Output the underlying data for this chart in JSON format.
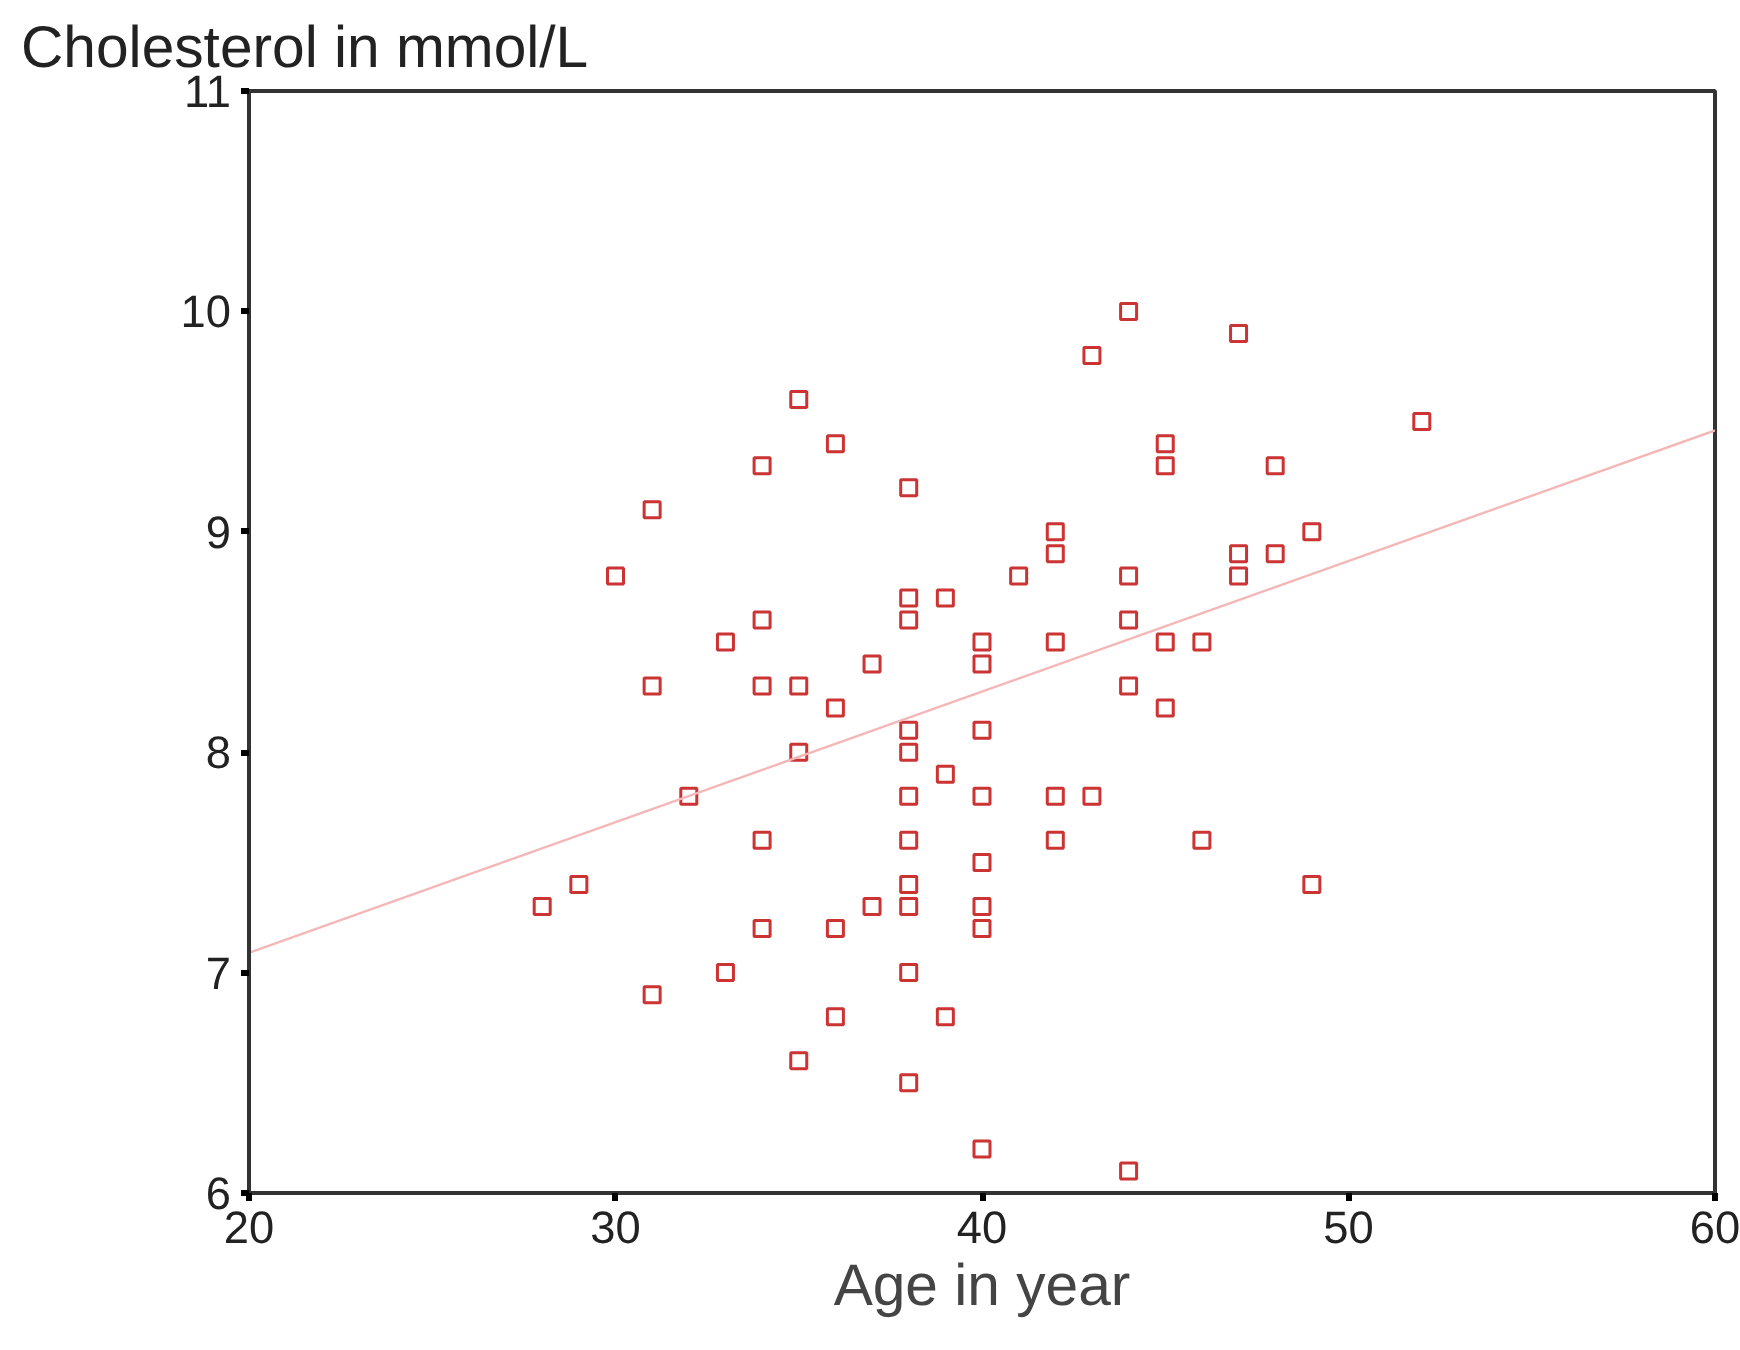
{
  "chart_data": {
    "type": "scatter",
    "xlabel": "Age in year",
    "ylabel": "Cholesterol in mmol/L",
    "xlim": [
      20,
      60
    ],
    "ylim": [
      6,
      11
    ],
    "xticks": [
      20,
      30,
      40,
      50,
      60
    ],
    "yticks": [
      6,
      7,
      8,
      9,
      10,
      11
    ],
    "grid": false,
    "marker": "square",
    "series": [
      {
        "color": "#cc3333",
        "x": [
          35,
          36,
          34,
          38,
          31,
          30,
          38,
          38,
          39,
          34,
          33,
          40,
          37,
          40,
          31,
          34,
          35,
          36,
          38,
          40,
          35,
          38,
          39,
          32,
          38,
          40,
          34,
          38,
          40,
          29,
          28,
          38,
          37,
          38,
          40,
          34,
          36,
          40,
          33,
          38,
          31,
          36,
          39,
          35,
          38,
          40,
          42,
          43,
          42,
          46,
          49,
          44,
          44,
          47,
          43,
          52,
          45,
          45,
          48,
          42,
          42,
          49,
          47,
          48,
          41,
          44,
          47,
          44,
          42,
          45,
          46,
          44,
          45
        ],
        "values": [
          9.6,
          9.4,
          9.3,
          9.2,
          9.1,
          8.8,
          8.7,
          8.6,
          8.7,
          8.6,
          8.5,
          8.5,
          8.4,
          8.4,
          8.3,
          8.3,
          8.3,
          8.2,
          8.1,
          8.1,
          8.0,
          8.0,
          7.9,
          7.8,
          7.8,
          7.8,
          7.6,
          7.6,
          7.5,
          7.4,
          7.3,
          7.4,
          7.3,
          7.3,
          7.3,
          7.2,
          7.2,
          7.2,
          7.0,
          7.0,
          6.9,
          6.8,
          6.8,
          6.6,
          6.5,
          6.2,
          7.8,
          7.8,
          7.6,
          7.6,
          7.4,
          6.1,
          10.0,
          9.9,
          9.8,
          9.5,
          9.4,
          9.3,
          9.3,
          9.0,
          8.9,
          9.0,
          8.9,
          8.9,
          8.8,
          8.8,
          8.8,
          8.6,
          8.5,
          8.5,
          8.5,
          8.3,
          8.2
        ]
      },
      {
        "type": "line",
        "color": "#f4b6b6",
        "marker": "none",
        "x": [
          20,
          60
        ],
        "values": [
          7.09,
          9.46
        ]
      }
    ]
  }
}
